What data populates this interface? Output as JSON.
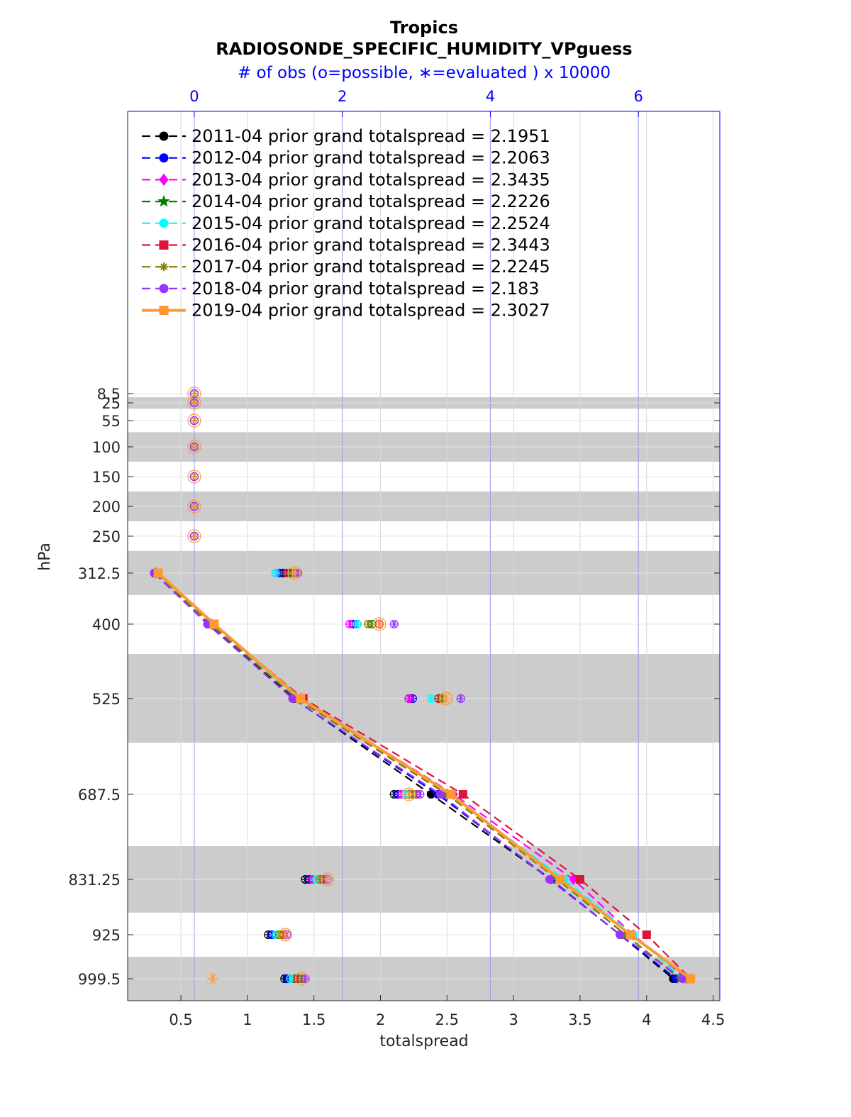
{
  "chart_data": {
    "type": "line",
    "title": "Tropics",
    "subtitle": "RADIOSONDE_SPECIFIC_HUMIDITY_VPguess",
    "top_axis_label": "# of obs (o=possible, ∗=evaluated ) x 10000",
    "xlabel": "totalspread",
    "ylabel": "hPa",
    "xlim": [
      0.1,
      4.55
    ],
    "x_ticks": [
      "0.5",
      "1",
      "1.5",
      "2",
      "2.5",
      "3",
      "3.5",
      "4",
      "4.5"
    ],
    "top_xlim": [
      -0.9,
      7.1
    ],
    "top_ticks": [
      "0",
      "2",
      "4",
      "6"
    ],
    "y_reversed": true,
    "y_ticks": [
      "8.5",
      "25",
      "55",
      "100",
      "150",
      "200",
      "250",
      "312.5",
      "400",
      "525",
      "687.5",
      "831.25",
      "925",
      "999.5"
    ],
    "levels": [
      8.5,
      25,
      55,
      100,
      150,
      200,
      250,
      312.5,
      400,
      525,
      687.5,
      831.25,
      925,
      999.5
    ],
    "shaded_bands_hPa": [
      [
        15,
        35
      ],
      [
        75,
        125
      ],
      [
        175,
        225
      ],
      [
        275,
        350
      ],
      [
        450,
        600
      ],
      [
        775,
        887.5
      ],
      [
        962.5,
        1037
      ]
    ],
    "profile_levels": [
      312.5,
      400,
      525,
      687.5,
      831.25,
      925,
      999.5
    ],
    "legend_location": "top-left",
    "series": [
      {
        "name": "2011-04 prior grand totalspread = 2.1951",
        "color": "#000000",
        "style": "dashed",
        "marker": "circle",
        "x": [
          0.3,
          0.71,
          1.35,
          2.38,
          3.28,
          3.8,
          4.2
        ],
        "obs_possible": [
          1.2,
          2.2,
          2.9,
          2.7,
          1.5,
          1.0,
          1.22
        ],
        "obs_evaluated": [
          1.2,
          2.2,
          2.9,
          2.7,
          1.5,
          1.0,
          1.22
        ]
      },
      {
        "name": "2012-04 prior grand totalspread = 2.2063",
        "color": "#0000ff",
        "style": "dashed",
        "marker": "circle",
        "x": [
          0.3,
          0.7,
          1.34,
          2.43,
          3.28,
          3.8,
          4.22
        ],
        "obs_possible": [
          1.15,
          2.15,
          2.95,
          2.75,
          1.55,
          1.05,
          1.25
        ],
        "obs_evaluated": [
          1.15,
          2.15,
          2.95,
          2.75,
          1.55,
          1.05,
          1.25
        ]
      },
      {
        "name": "2013-04 prior grand totalspread = 2.3435",
        "color": "#ff00ff",
        "style": "dashed",
        "marker": "diamond",
        "x": [
          0.31,
          0.73,
          1.4,
          2.55,
          3.45,
          3.9,
          4.3
        ],
        "obs_possible": [
          1.1,
          2.1,
          2.9,
          2.8,
          1.6,
          1.1,
          1.3
        ],
        "obs_evaluated": [
          1.1,
          2.1,
          2.9,
          2.8,
          1.6,
          1.1,
          1.3
        ]
      },
      {
        "name": "2014-04 prior grand totalspread = 2.2226",
        "color": "#008000",
        "style": "dashed",
        "marker": "star",
        "x": [
          0.31,
          0.72,
          1.37,
          2.5,
          3.33,
          3.84,
          4.25
        ],
        "obs_possible": [
          1.3,
          2.4,
          3.3,
          2.9,
          1.7,
          1.15,
          1.35
        ],
        "obs_evaluated": [
          1.3,
          2.4,
          3.3,
          2.9,
          1.7,
          1.15,
          1.35
        ]
      },
      {
        "name": "2015-04 prior grand totalspread = 2.2524",
        "color": "#00ffff",
        "style": "dashed",
        "marker": "circle",
        "x": [
          0.31,
          0.72,
          1.38,
          2.52,
          3.38,
          3.9,
          4.27
        ],
        "obs_possible": [
          1.1,
          2.2,
          3.2,
          2.85,
          1.65,
          1.1,
          1.3
        ],
        "obs_evaluated": [
          1.1,
          2.2,
          3.2,
          2.85,
          1.65,
          1.1,
          1.3
        ]
      },
      {
        "name": "2016-04 prior grand totalspread = 2.3443",
        "color": "#dc143c",
        "style": "dashed",
        "marker": "square",
        "x": [
          0.32,
          0.74,
          1.42,
          2.62,
          3.5,
          4.0,
          4.33
        ],
        "obs_possible": [
          1.25,
          2.5,
          3.3,
          3.0,
          1.75,
          1.2,
          1.4
        ],
        "obs_evaluated": [
          1.25,
          2.5,
          3.3,
          3.0,
          1.75,
          1.2,
          1.4
        ]
      },
      {
        "name": "2017-04 prior grand totalspread = 2.2245",
        "color": "#808000",
        "style": "dashed",
        "marker": "asterisk",
        "x": [
          0.31,
          0.72,
          1.37,
          2.5,
          3.33,
          3.84,
          4.26
        ],
        "obs_possible": [
          1.35,
          2.35,
          3.35,
          2.95,
          1.7,
          1.15,
          1.45
        ],
        "obs_evaluated": [
          1.35,
          2.35,
          3.35,
          2.95,
          1.7,
          1.15,
          1.45
        ]
      },
      {
        "name": "2018-04 prior grand totalspread = 2.183",
        "color": "#9933ff",
        "style": "dashed",
        "marker": "circle",
        "x": [
          0.3,
          0.7,
          1.34,
          2.45,
          3.27,
          3.8,
          4.27
        ],
        "obs_possible": [
          1.4,
          2.7,
          3.6,
          3.05,
          1.8,
          1.25,
          1.5
        ],
        "obs_evaluated": [
          1.4,
          2.7,
          3.6,
          3.05,
          1.8,
          1.25,
          1.5
        ]
      },
      {
        "name": "2019-04 prior grand totalspread = 2.3027",
        "color": "#ff9933",
        "style": "solid",
        "marker": "square",
        "x": [
          0.33,
          0.75,
          1.4,
          2.53,
          3.35,
          3.88,
          4.33
        ],
        "obs_possible": [
          1.35,
          2.5,
          3.4,
          2.9,
          1.8,
          1.23,
          1.45
        ],
        "obs_evaluated": [
          1.35,
          2.5,
          3.4,
          2.9,
          1.8,
          1.23,
          0.25
        ]
      }
    ],
    "upper_level_obs": {
      "levels": [
        8.5,
        25,
        55,
        100,
        150,
        200,
        250
      ],
      "count": 0
    }
  }
}
